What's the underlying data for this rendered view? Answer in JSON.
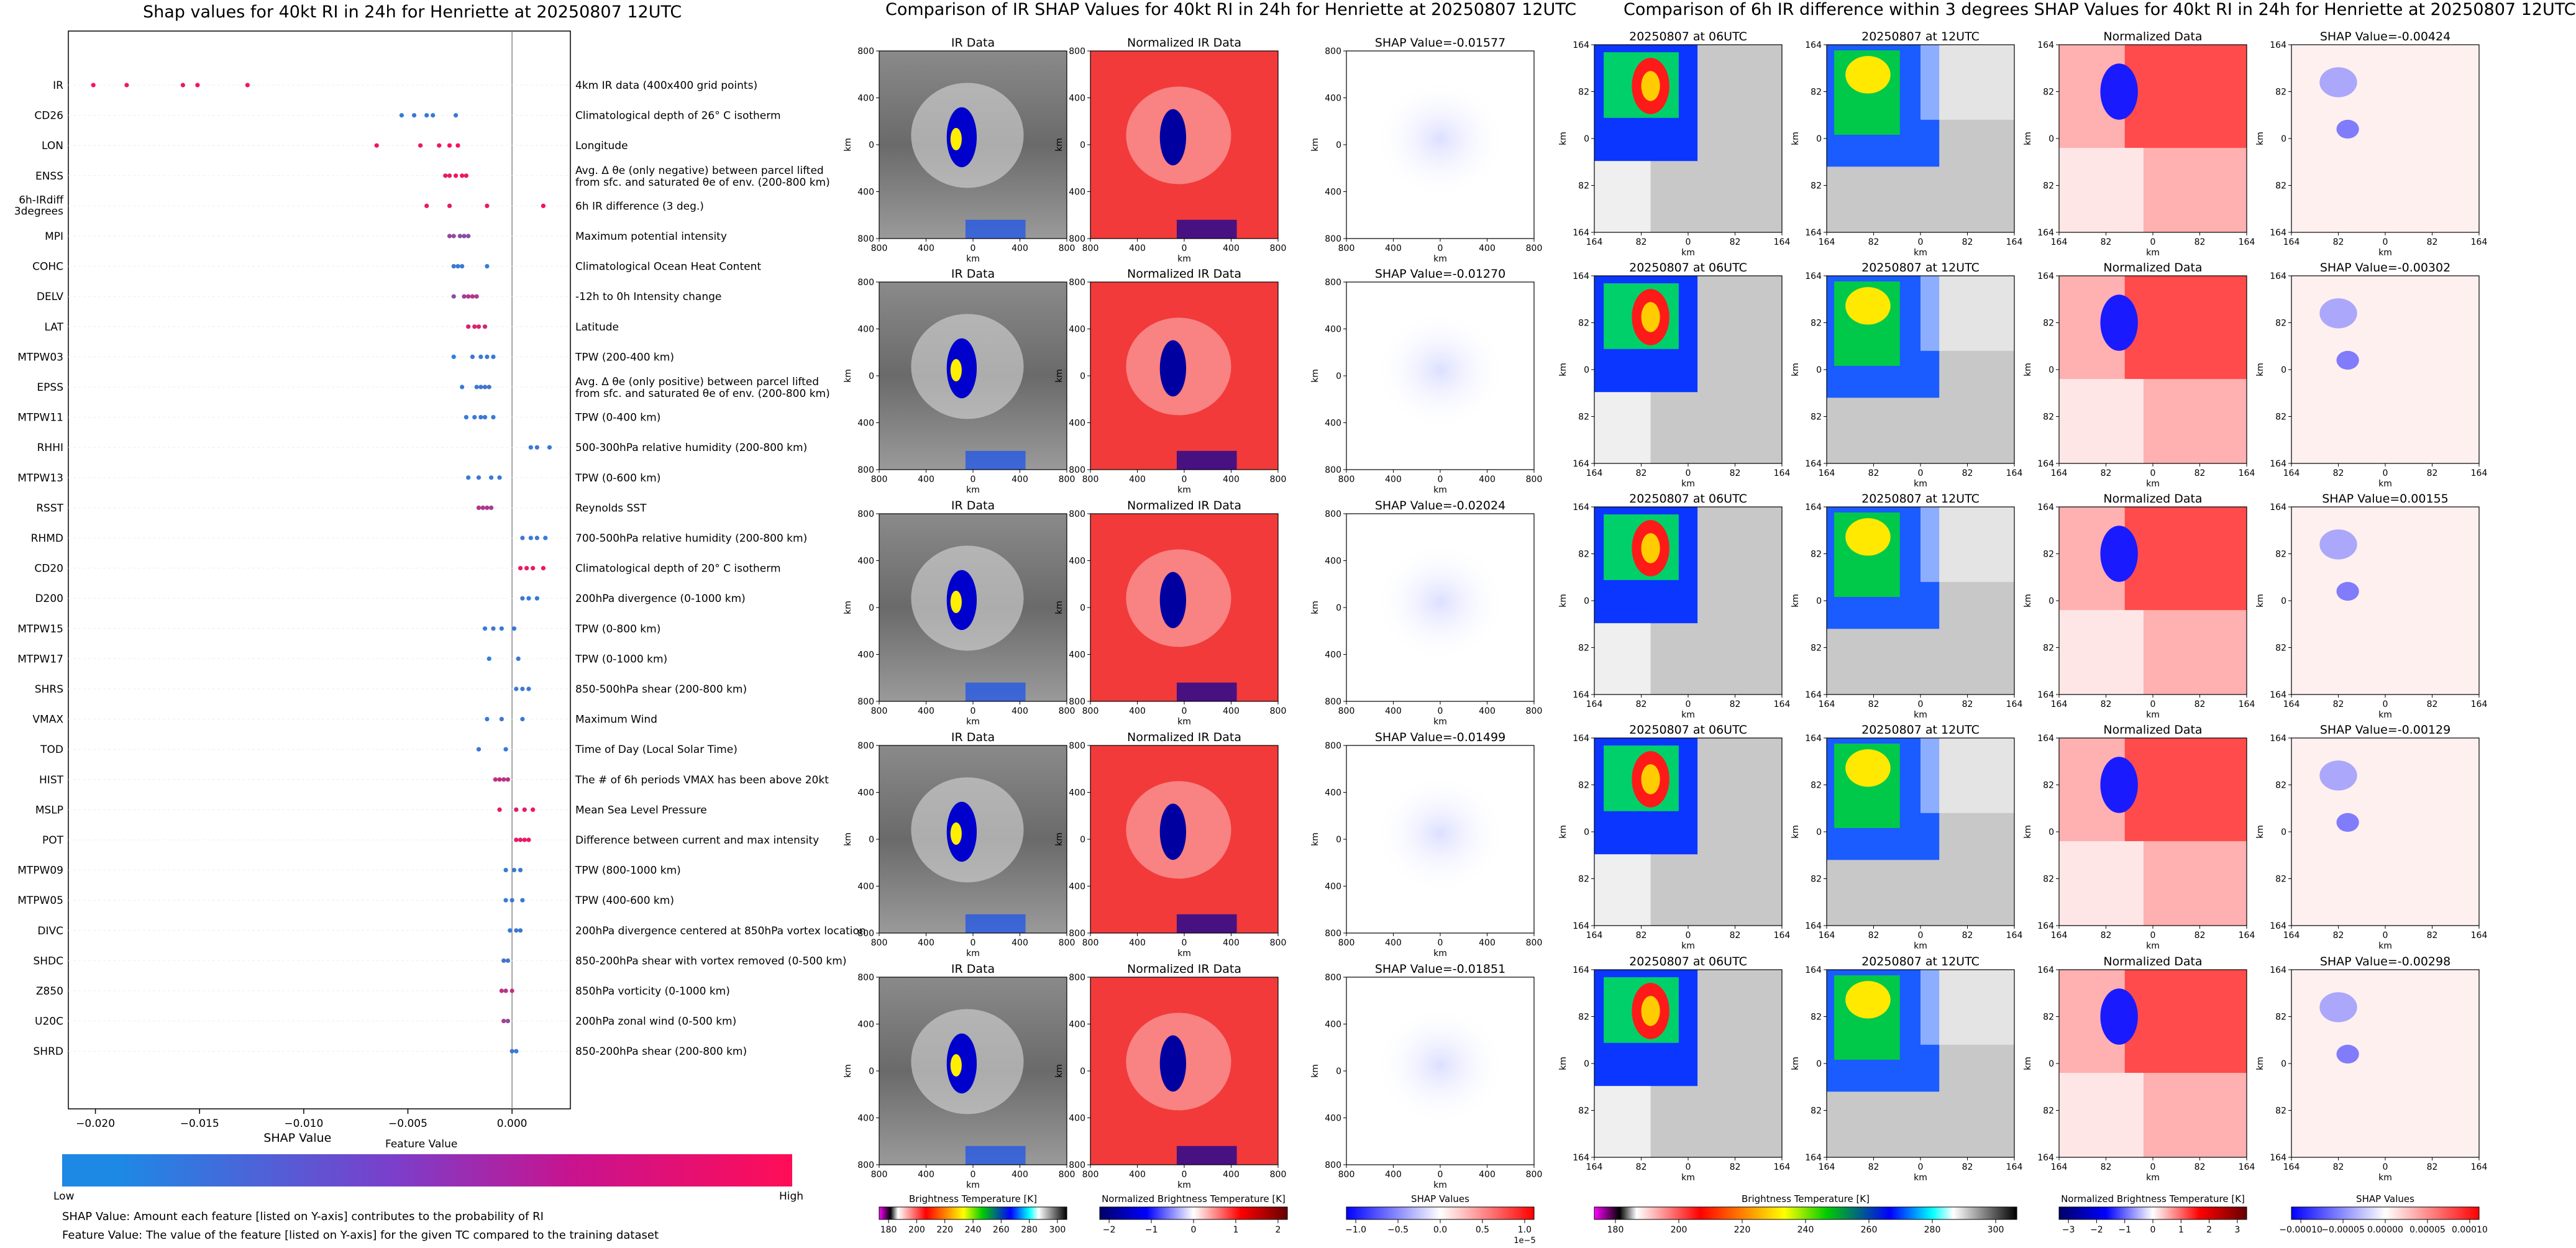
{
  "colors": {
    "low": "#1E88E5",
    "high": "#FF0D57",
    "panel_ink": "#000000",
    "grid": "#eeeeee"
  },
  "left_title": "Shap values for 40kt RI in 24h for Henriette at 20250807 12UTC",
  "middle_title": "Comparison of IR SHAP Values for 40kt RI in 24h for Henriette at 20250807 12UTC",
  "right_title": "Comparison of 6h IR difference within 3 degrees SHAP Values for 40kt RI in 24h for Henriette at 20250807 12UTC",
  "summary_plot": {
    "xlabel": "SHAP Value",
    "colorbar_title": "Feature Value",
    "colorbar_low": "Low",
    "colorbar_high": "High",
    "footnotes": [
      "SHAP Value: Amount each feature [listed on Y-axis] contributes to the probability of RI",
      "Feature Value: The value of the feature [listed on Y-axis] for the given TC compared to the training dataset"
    ]
  },
  "chart_data": [
    {
      "type": "scatter",
      "title": "Shap values for 40kt RI in 24h for Henriette at 20250807 12UTC",
      "xlabel": "SHAP Value",
      "xlim": [
        -0.0213,
        0.0028
      ],
      "xticks": [
        {
          "v": -0.02,
          "label": "−0.020"
        },
        {
          "v": -0.015,
          "label": "−0.015"
        },
        {
          "v": -0.01,
          "label": "−0.010"
        },
        {
          "v": -0.005,
          "label": "−0.005"
        },
        {
          "v": 0,
          "label": "0.000"
        }
      ],
      "features": [
        {
          "name": "IR",
          "desc": "4km IR data (400x400 grid points)",
          "points": [
            [
              -0.0201,
              0.95
            ],
            [
              -0.0185,
              0.9
            ],
            [
              -0.0158,
              0.92
            ],
            [
              -0.0151,
              0.97
            ],
            [
              -0.0127,
              0.93
            ]
          ]
        },
        {
          "name": "CD26",
          "desc": "Climatological depth of 26° C isotherm",
          "points": [
            [
              -0.0053,
              0.1
            ],
            [
              -0.0047,
              0.15
            ],
            [
              -0.0041,
              0.12
            ],
            [
              -0.0038,
              0.1
            ],
            [
              -0.0027,
              0.12
            ]
          ]
        },
        {
          "name": "LON",
          "desc": "Longitude",
          "points": [
            [
              -0.0065,
              0.95
            ],
            [
              -0.0044,
              0.9
            ],
            [
              -0.0035,
              0.92
            ],
            [
              -0.003,
              0.97
            ],
            [
              -0.0026,
              0.93
            ]
          ]
        },
        {
          "name": "ENSS",
          "desc": "Avg. Δ θe (only negative) between parcel lifted from sfc. and saturated θe of env. (200-800 km)",
          "points": [
            [
              -0.0032,
              0.9
            ],
            [
              -0.003,
              0.88
            ],
            [
              -0.0027,
              0.92
            ],
            [
              -0.0024,
              0.95
            ],
            [
              -0.0022,
              0.9
            ]
          ]
        },
        {
          "name": "6h-IRdiff 3degrees",
          "desc": "6h IR difference (3 deg.)",
          "points": [
            [
              -0.0041,
              0.9
            ],
            [
              -0.003,
              0.88
            ],
            [
              -0.0012,
              0.9
            ],
            [
              0.0015,
              0.95
            ]
          ]
        },
        {
          "name": "MPI",
          "desc": "Maximum potential intensity",
          "points": [
            [
              -0.003,
              0.55
            ],
            [
              -0.0028,
              0.5
            ],
            [
              -0.0025,
              0.45
            ],
            [
              -0.0023,
              0.5
            ],
            [
              -0.0021,
              0.45
            ]
          ]
        },
        {
          "name": "COHC",
          "desc": "Climatological Ocean Heat Content",
          "points": [
            [
              -0.0028,
              0.15
            ],
            [
              -0.0026,
              0.1
            ],
            [
              -0.0024,
              0.12
            ],
            [
              -0.0012,
              0.1
            ]
          ]
        },
        {
          "name": "DELV",
          "desc": "-12h to 0h Intensity change",
          "points": [
            [
              -0.0028,
              0.45
            ],
            [
              -0.0023,
              0.6
            ],
            [
              -0.0021,
              0.65
            ],
            [
              -0.0019,
              0.7
            ],
            [
              -0.0017,
              0.6
            ]
          ]
        },
        {
          "name": "LAT",
          "desc": "Latitude",
          "points": [
            [
              -0.0021,
              0.85
            ],
            [
              -0.0018,
              0.8
            ],
            [
              -0.0016,
              0.85
            ],
            [
              -0.0013,
              0.8
            ]
          ]
        },
        {
          "name": "MTPW03",
          "desc": "TPW (200-400 km)",
          "points": [
            [
              -0.0028,
              0.05
            ],
            [
              -0.0019,
              0.15
            ],
            [
              -0.0015,
              0.1
            ],
            [
              -0.0012,
              0.12
            ],
            [
              -0.0009,
              0.1
            ]
          ]
        },
        {
          "name": "EPSS",
          "desc": "Avg. Δ θe (only positive) between parcel lifted from sfc. and saturated θe of env. (200-800 km)",
          "points": [
            [
              -0.0024,
              0.1
            ],
            [
              -0.0017,
              0.1
            ],
            [
              -0.0015,
              0.15
            ],
            [
              -0.0013,
              0.2
            ],
            [
              -0.0011,
              0.15
            ]
          ]
        },
        {
          "name": "MTPW11",
          "desc": "TPW (0-400 km)",
          "points": [
            [
              -0.0022,
              0.1
            ],
            [
              -0.0018,
              0.1
            ],
            [
              -0.0015,
              0.15
            ],
            [
              -0.0013,
              0.1
            ],
            [
              -0.0009,
              0.12
            ]
          ]
        },
        {
          "name": "RHHI",
          "desc": "500-300hPa relative humidity (200-800 km)",
          "points": [
            [
              0.0009,
              0.1
            ],
            [
              0.0012,
              0.15
            ],
            [
              0.0018,
              0.1
            ]
          ]
        },
        {
          "name": "MTPW13",
          "desc": "TPW (0-600 km)",
          "points": [
            [
              -0.0021,
              0.1
            ],
            [
              -0.0016,
              0.15
            ],
            [
              -0.001,
              0.1
            ],
            [
              -0.0006,
              0.12
            ]
          ]
        },
        {
          "name": "RSST",
          "desc": "Reynolds SST",
          "points": [
            [
              -0.0016,
              0.65
            ],
            [
              -0.0014,
              0.6
            ],
            [
              -0.0012,
              0.65
            ],
            [
              -0.001,
              0.6
            ]
          ]
        },
        {
          "name": "RHMD",
          "desc": "700-500hPa relative humidity (200-800 km)",
          "points": [
            [
              0.0005,
              0.15
            ],
            [
              0.0009,
              0.1
            ],
            [
              0.0012,
              0.12
            ],
            [
              0.0016,
              0.1
            ]
          ]
        },
        {
          "name": "CD20",
          "desc": "Climatological depth of 20° C isotherm",
          "points": [
            [
              0.0004,
              0.9
            ],
            [
              0.0007,
              0.88
            ],
            [
              0.001,
              0.9
            ],
            [
              0.0015,
              0.95
            ]
          ]
        },
        {
          "name": "D200",
          "desc": "200hPa divergence (0-1000 km)",
          "points": [
            [
              0.0005,
              0.15
            ],
            [
              0.0008,
              0.1
            ],
            [
              0.0012,
              0.12
            ]
          ]
        },
        {
          "name": "MTPW15",
          "desc": "TPW (0-800 km)",
          "points": [
            [
              -0.0013,
              0.1
            ],
            [
              -0.0009,
              0.15
            ],
            [
              -0.0005,
              0.1
            ],
            [
              0.0001,
              0.12
            ]
          ]
        },
        {
          "name": "MTPW17",
          "desc": "TPW (0-1000 km)",
          "points": [
            [
              -0.0011,
              0.1
            ],
            [
              0.0003,
              0.15
            ]
          ]
        },
        {
          "name": "SHRS",
          "desc": "850-500hPa shear (200-800 km)",
          "points": [
            [
              0.0002,
              0.1
            ],
            [
              0.0005,
              0.15
            ],
            [
              0.0008,
              0.12
            ]
          ]
        },
        {
          "name": "VMAX",
          "desc": "Maximum Wind",
          "points": [
            [
              -0.0012,
              0.1
            ],
            [
              -0.0005,
              0.15
            ],
            [
              0.0005,
              0.12
            ]
          ]
        },
        {
          "name": "TOD",
          "desc": "Time of Day (Local Solar Time)",
          "points": [
            [
              -0.0016,
              0.15
            ],
            [
              -0.0003,
              0.1
            ]
          ]
        },
        {
          "name": "HIST",
          "desc": "The # of 6h periods VMAX has been above 20kt",
          "points": [
            [
              -0.0008,
              0.7
            ],
            [
              -0.0006,
              0.75
            ],
            [
              -0.0004,
              0.7
            ],
            [
              -0.0002,
              0.72
            ]
          ]
        },
        {
          "name": "MSLP",
          "desc": "Mean Sea Level Pressure",
          "points": [
            [
              -0.0006,
              0.9
            ],
            [
              0.0002,
              0.85
            ],
            [
              0.0006,
              0.9
            ],
            [
              0.001,
              0.95
            ]
          ]
        },
        {
          "name": "POT",
          "desc": "Difference between current and max intensity",
          "points": [
            [
              0.0002,
              0.9
            ],
            [
              0.0004,
              0.88
            ],
            [
              0.0006,
              0.9
            ],
            [
              0.0008,
              0.92
            ]
          ]
        },
        {
          "name": "MTPW09",
          "desc": "TPW (800-1000 km)",
          "points": [
            [
              -0.0003,
              0.1
            ],
            [
              0.0001,
              0.15
            ],
            [
              0.0004,
              0.12
            ]
          ]
        },
        {
          "name": "MTPW05",
          "desc": "TPW (400-600 km)",
          "points": [
            [
              -0.0003,
              0.1
            ],
            [
              0,
              0.15
            ],
            [
              0.0005,
              0.12
            ]
          ]
        },
        {
          "name": "DIVC",
          "desc": "200hPa divergence centered at 850hPa vortex location",
          "points": [
            [
              -0.0001,
              0.1
            ],
            [
              0.0002,
              0.15
            ],
            [
              0.0004,
              0.12
            ]
          ]
        },
        {
          "name": "SHDC",
          "desc": "850-200hPa shear with vortex removed (0-500 km)",
          "points": [
            [
              -0.0004,
              0.2
            ],
            [
              -0.0002,
              0.15
            ]
          ]
        },
        {
          "name": "Z850",
          "desc": "850hPa vorticity (0-1000 km)",
          "points": [
            [
              -0.0005,
              0.7
            ],
            [
              -0.0003,
              0.65
            ],
            [
              0,
              0.75
            ]
          ]
        },
        {
          "name": "U20C",
          "desc": "200hPa zonal wind (0-500 km)",
          "points": [
            [
              -0.0004,
              0.6
            ],
            [
              -0.0002,
              0.5
            ]
          ]
        },
        {
          "name": "SHRD",
          "desc": "850-200hPa shear (200-800 km)",
          "points": [
            [
              0,
              0.15
            ],
            [
              0.0002,
              0.1
            ]
          ]
        }
      ]
    }
  ],
  "ir_block": {
    "axis_label": "km",
    "x_ticks": [
      "800",
      "400",
      "0",
      "400",
      "800"
    ],
    "y_ticks": [
      "800",
      "400",
      "0",
      "400",
      "800"
    ],
    "rows": [
      {
        "ir_title": "IR Data",
        "norm_title": "Normalized IR Data",
        "shap_title": "SHAP Value=-0.01577"
      },
      {
        "ir_title": "IR Data",
        "norm_title": "Normalized IR Data",
        "shap_title": "SHAP Value=-0.01270"
      },
      {
        "ir_title": "IR Data",
        "norm_title": "Normalized IR Data",
        "shap_title": "SHAP Value=-0.02024"
      },
      {
        "ir_title": "IR Data",
        "norm_title": "Normalized IR Data",
        "shap_title": "SHAP Value=-0.01499"
      },
      {
        "ir_title": "IR Data",
        "norm_title": "Normalized IR Data",
        "shap_title": "SHAP Value=-0.01851"
      }
    ],
    "colorbars": [
      {
        "title": "Brightness Temperature [K]",
        "ticks": [
          "180",
          "200",
          "220",
          "240",
          "260",
          "280",
          "300"
        ]
      },
      {
        "title": "Normalized Brightness Temperature [K]",
        "ticks": [
          "−2",
          "−1",
          "0",
          "1",
          "2"
        ]
      },
      {
        "title": "SHAP Values",
        "ticks": [
          "−1.0",
          "−0.5",
          "0.0",
          "0.5",
          "1.0"
        ],
        "exponent": "1e−5"
      }
    ]
  },
  "diff_block": {
    "axis_label": "km",
    "x_ticks": [
      "164",
      "82",
      "0",
      "82",
      "164"
    ],
    "y_ticks": [
      "164",
      "82",
      "0",
      "82",
      "164"
    ],
    "rows": [
      {
        "t1": "20250807 at 06UTC",
        "t2": "20250807 at 12UTC",
        "norm_title": "Normalized Data",
        "shap_title": "SHAP Value=-0.00424"
      },
      {
        "t1": "20250807 at 06UTC",
        "t2": "20250807 at 12UTC",
        "norm_title": "Normalized Data",
        "shap_title": "SHAP Value=-0.00302"
      },
      {
        "t1": "20250807 at 06UTC",
        "t2": "20250807 at 12UTC",
        "norm_title": "Normalized Data",
        "shap_title": "SHAP Value=0.00155"
      },
      {
        "t1": "20250807 at 06UTC",
        "t2": "20250807 at 12UTC",
        "norm_title": "Normalized Data",
        "shap_title": "SHAP Value=-0.00129"
      },
      {
        "t1": "20250807 at 06UTC",
        "t2": "20250807 at 12UTC",
        "norm_title": "Normalized Data",
        "shap_title": "SHAP Value=-0.00298"
      }
    ],
    "colorbars": [
      {
        "title": "Brightness Temperature [K]",
        "ticks": [
          "180",
          "200",
          "220",
          "240",
          "260",
          "280",
          "300"
        ]
      },
      {
        "title": "Normalized Brightness Temperature [K]",
        "ticks": [
          "−3",
          "−2",
          "−1",
          "0",
          "1",
          "2",
          "3"
        ]
      },
      {
        "title": "SHAP Values",
        "ticks": [
          "−0.00010",
          "−0.00005",
          "0.00000",
          "0.00005",
          "0.00010"
        ]
      }
    ]
  }
}
